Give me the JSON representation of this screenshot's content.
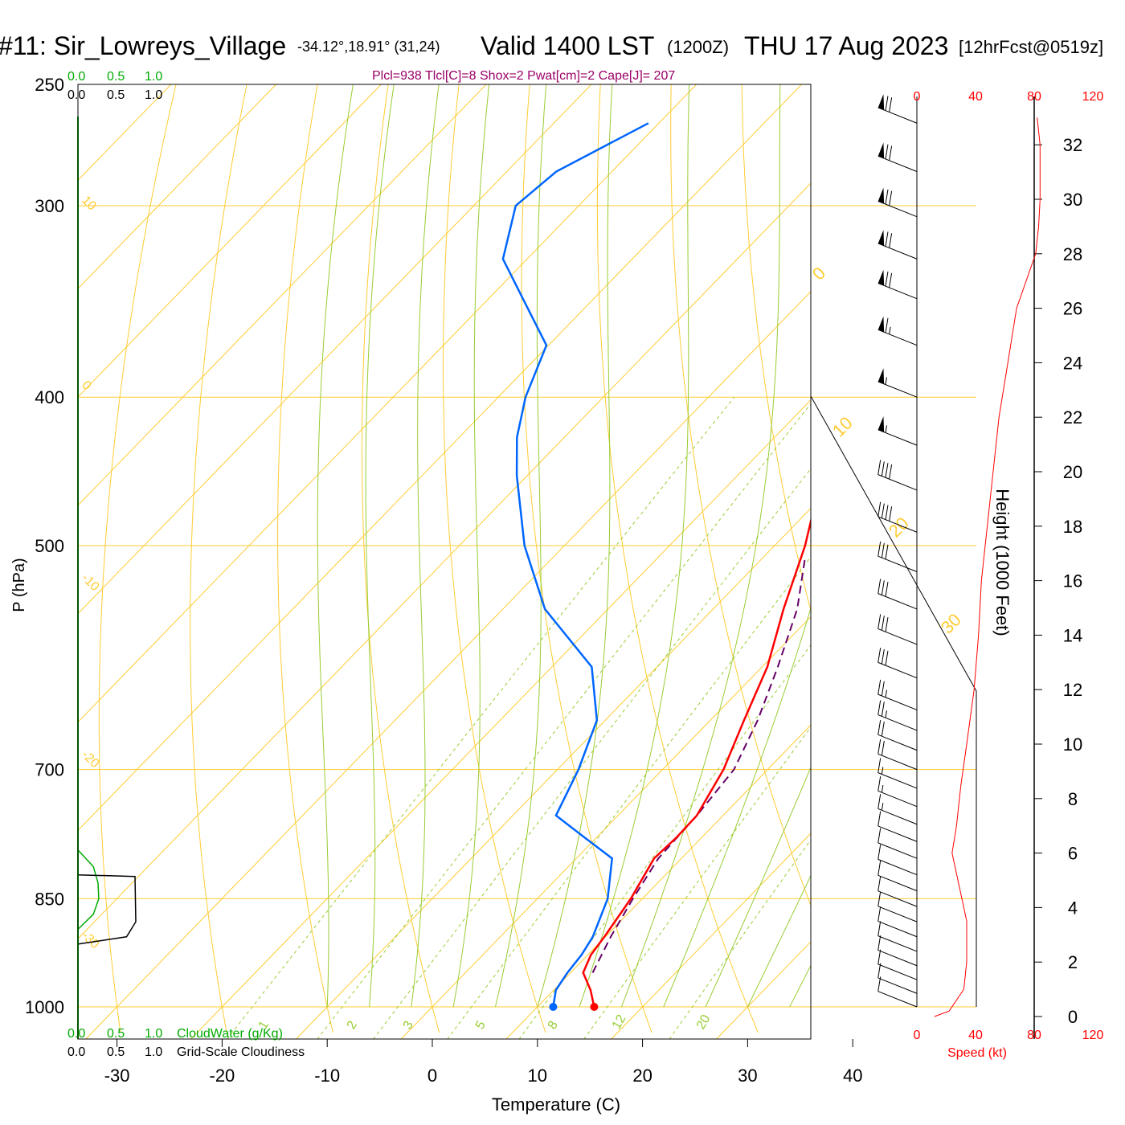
{
  "header": {
    "station": "#11: Sir_Lowreys_Village",
    "coords": "-34.12°,18.91° (31,24)",
    "valid": "Valid 1400 LST",
    "zulu": "(1200Z)",
    "date": "THU 17 Aug 2023",
    "forecast": "[12hrFcst@0519z]",
    "indices": "Plcl=938 Tlcl[C]=8 Shox=2 Pwat[cm]=2 Cape[J]= 207"
  },
  "colors": {
    "temperature": "#ff0000",
    "dewpoint": "#0066ff",
    "parcel": "#660066",
    "isobar_isotherm": "#ffcc33",
    "mixing_ratio": "#99cc33",
    "cloud_water": "#00aa00",
    "indices_text": "#990066",
    "speed": "#ff0000"
  },
  "left_scales": {
    "cloud_water_ticks": [
      "0.0",
      "0.5",
      "1.0"
    ],
    "cloudiness_ticks": [
      "0.0",
      "0.5",
      "1.0"
    ],
    "cloud_water_label": "CloudWater (g/Kg)",
    "cloudiness_label": "Grid-Scale Cloudiness"
  },
  "right_panel": {
    "speed_ticks": [
      "0",
      "40",
      "80",
      "120"
    ],
    "speed_label": "Speed (kt)",
    "height_label": "Height (1000 Feet)",
    "height_ticks": [
      "0",
      "2",
      "4",
      "6",
      "8",
      "10",
      "12",
      "14",
      "16",
      "18",
      "20",
      "22",
      "24",
      "26",
      "28",
      "30",
      "32"
    ]
  },
  "chart_data": {
    "type": "skew-t",
    "xlabel": "Temperature (C)",
    "ylabel": "P (hPa)",
    "x_ticks": [
      "-30",
      "-20",
      "-10",
      "0",
      "10",
      "20",
      "30",
      "40"
    ],
    "pressure_ticks": [
      "250",
      "300",
      "400",
      "500",
      "700",
      "850",
      "1000"
    ],
    "isotherm_labels": [
      "10",
      "0",
      "-10",
      "-20",
      "-30"
    ],
    "isotherm_labels_right": [
      "0",
      "10",
      "20",
      "30"
    ],
    "mixing_ratio_labels": [
      "1",
      "2",
      "3",
      "5",
      "8",
      "12",
      "20"
    ],
    "temperature": [
      {
        "p": 1000,
        "t": 15.4
      },
      {
        "p": 975,
        "t": 13.5
      },
      {
        "p": 950,
        "t": 11.2
      },
      {
        "p": 925,
        "t": 10.3
      },
      {
        "p": 900,
        "t": 9.9
      },
      {
        "p": 850,
        "t": 8.9
      },
      {
        "p": 800,
        "t": 7.4
      },
      {
        "p": 775,
        "t": 7.6
      },
      {
        "p": 750,
        "t": 7.5
      },
      {
        "p": 700,
        "t": 5.8
      },
      {
        "p": 650,
        "t": 3.2
      },
      {
        "p": 600,
        "t": 0.5
      },
      {
        "p": 550,
        "t": -3.3
      },
      {
        "p": 500,
        "t": -7.1
      },
      {
        "p": 450,
        "t": -12.0
      },
      {
        "p": 400,
        "t": -18.0
      },
      {
        "p": 370,
        "t": -22.5
      },
      {
        "p": 350,
        "t": -24.6
      },
      {
        "p": 325,
        "t": -26.5
      },
      {
        "p": 300,
        "t": -28.5
      },
      {
        "p": 275,
        "t": -31.0
      },
      {
        "p": 265,
        "t": -32.3
      }
    ],
    "dewpoint": [
      {
        "p": 1000,
        "t": 11.5
      },
      {
        "p": 975,
        "t": 10.2
      },
      {
        "p": 950,
        "t": 9.7
      },
      {
        "p": 925,
        "t": 9.4
      },
      {
        "p": 900,
        "t": 8.8
      },
      {
        "p": 850,
        "t": 6.7
      },
      {
        "p": 800,
        "t": 3.4
      },
      {
        "p": 775,
        "t": -1.2
      },
      {
        "p": 750,
        "t": -5.9
      },
      {
        "p": 700,
        "t": -8.0
      },
      {
        "p": 650,
        "t": -10.8
      },
      {
        "p": 600,
        "t": -16.2
      },
      {
        "p": 550,
        "t": -26.0
      },
      {
        "p": 500,
        "t": -33.8
      },
      {
        "p": 450,
        "t": -41.0
      },
      {
        "p": 425,
        "t": -44.5
      },
      {
        "p": 400,
        "t": -47.4
      },
      {
        "p": 370,
        "t": -50.2
      },
      {
        "p": 350,
        "t": -55.4
      },
      {
        "p": 325,
        "t": -62.3
      },
      {
        "p": 300,
        "t": -66.0
      },
      {
        "p": 285,
        "t": -65.3
      },
      {
        "p": 265,
        "t": -61.0
      }
    ],
    "parcel": [
      {
        "p": 950,
        "t": 12.1
      },
      {
        "p": 900,
        "t": 10.5
      },
      {
        "p": 850,
        "t": 9.1
      },
      {
        "p": 800,
        "t": 7.8
      },
      {
        "p": 750,
        "t": 7.5
      },
      {
        "p": 700,
        "t": 6.8
      },
      {
        "p": 650,
        "t": 4.5
      },
      {
        "p": 600,
        "t": 1.5
      },
      {
        "p": 550,
        "t": -2.0
      },
      {
        "p": 510,
        "t": -5.9
      }
    ],
    "cloud_water": [
      {
        "p": 790,
        "v": 0.0
      },
      {
        "p": 810,
        "v": 0.2
      },
      {
        "p": 830,
        "v": 0.26
      },
      {
        "p": 850,
        "v": 0.27
      },
      {
        "p": 870,
        "v": 0.2
      },
      {
        "p": 890,
        "v": 0.0
      }
    ],
    "cloudiness": [
      {
        "p": 820,
        "v": 0.0
      },
      {
        "p": 822,
        "v": 0.74
      },
      {
        "p": 880,
        "v": 0.75
      },
      {
        "p": 900,
        "v": 0.63
      },
      {
        "p": 910,
        "v": 0.0
      }
    ],
    "wind_speed_profile": [
      {
        "h": 0.0,
        "s": 12
      },
      {
        "h": 0.2,
        "s": 22
      },
      {
        "h": 1.0,
        "s": 32
      },
      {
        "h": 2.0,
        "s": 34
      },
      {
        "h": 3.5,
        "s": 34
      },
      {
        "h": 5.0,
        "s": 28
      },
      {
        "h": 6.0,
        "s": 24
      },
      {
        "h": 7.0,
        "s": 27
      },
      {
        "h": 8.5,
        "s": 30
      },
      {
        "h": 10.0,
        "s": 34
      },
      {
        "h": 12.0,
        "s": 39
      },
      {
        "h": 14.0,
        "s": 42
      },
      {
        "h": 16.0,
        "s": 44
      },
      {
        "h": 18.0,
        "s": 48
      },
      {
        "h": 20.0,
        "s": 52
      },
      {
        "h": 22.0,
        "s": 56
      },
      {
        "h": 24.0,
        "s": 62
      },
      {
        "h": 26.0,
        "s": 68
      },
      {
        "h": 28.0,
        "s": 81
      },
      {
        "h": 29.0,
        "s": 83
      },
      {
        "h": 30.0,
        "s": 84
      },
      {
        "h": 32.0,
        "s": 84
      },
      {
        "h": 33.0,
        "s": 82
      }
    ],
    "wind_barbs": [
      {
        "p": 265,
        "speed": 70
      },
      {
        "p": 285,
        "speed": 70
      },
      {
        "p": 305,
        "speed": 70
      },
      {
        "p": 325,
        "speed": 70
      },
      {
        "p": 345,
        "speed": 70
      },
      {
        "p": 370,
        "speed": 65
      },
      {
        "p": 400,
        "speed": 55
      },
      {
        "p": 430,
        "speed": 55
      },
      {
        "p": 460,
        "speed": 40
      },
      {
        "p": 490,
        "speed": 40
      },
      {
        "p": 520,
        "speed": 30
      },
      {
        "p": 550,
        "speed": 30
      },
      {
        "p": 580,
        "speed": 30
      },
      {
        "p": 610,
        "speed": 30
      },
      {
        "p": 640,
        "speed": 25
      },
      {
        "p": 660,
        "speed": 25
      },
      {
        "p": 680,
        "speed": 20
      },
      {
        "p": 700,
        "speed": 20
      },
      {
        "p": 720,
        "speed": 15
      },
      {
        "p": 740,
        "speed": 15
      },
      {
        "p": 760,
        "speed": 15
      },
      {
        "p": 780,
        "speed": 10
      },
      {
        "p": 800,
        "speed": 10
      },
      {
        "p": 820,
        "speed": 10
      },
      {
        "p": 840,
        "speed": 10
      },
      {
        "p": 860,
        "speed": 10
      },
      {
        "p": 880,
        "speed": 10
      },
      {
        "p": 900,
        "speed": 10
      },
      {
        "p": 920,
        "speed": 10
      },
      {
        "p": 940,
        "speed": 10
      },
      {
        "p": 960,
        "speed": 10
      },
      {
        "p": 980,
        "speed": 10
      },
      {
        "p": 1000,
        "speed": 10
      }
    ]
  }
}
